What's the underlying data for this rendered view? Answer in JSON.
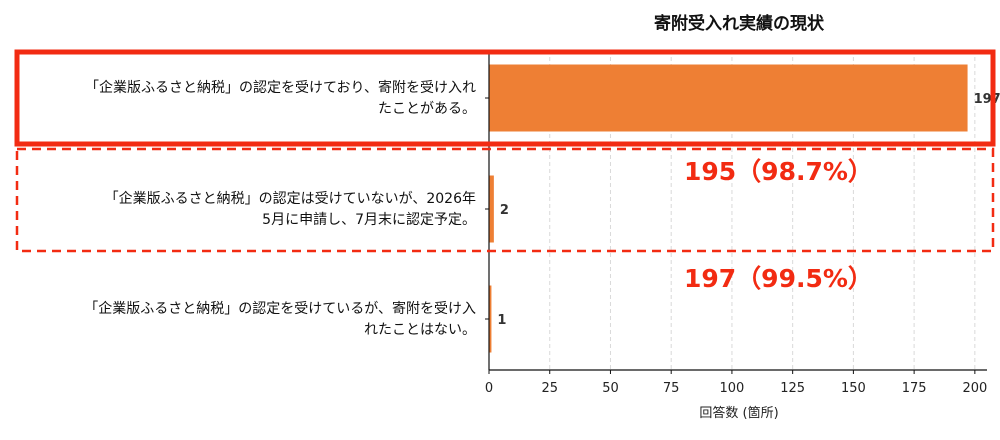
{
  "chart_data": {
    "type": "bar",
    "orientation": "horizontal",
    "title": "寄附受入れ実績の現状",
    "xlabel": "回答数 (箇所)",
    "ylabel": "",
    "xlim": [
      0,
      205
    ],
    "xticks": [
      0,
      25,
      50,
      75,
      100,
      125,
      150,
      175,
      200
    ],
    "grid": "vertical dashed",
    "bar_color": "#ee7f34",
    "categories": [
      [
        "「企業版ふるさと納税」の認定を受けており、寄附を受け入れ",
        "たことがある。"
      ],
      [
        "「企業版ふるさと納税」の認定は受けていないが、2026年",
        "5月に申請し、7月末に認定予定。"
      ],
      [
        "「企業版ふるさと納税」の認定を受けているが、寄附を受け入",
        "れたことはない。"
      ]
    ],
    "values": [
      197,
      2,
      1
    ],
    "annotations": [
      {
        "text": "195（98.7%）",
        "color": "#f22b12"
      },
      {
        "text": "197（99.5%）",
        "color": "#f22b12"
      }
    ],
    "highlight_color": "#f22b12"
  }
}
